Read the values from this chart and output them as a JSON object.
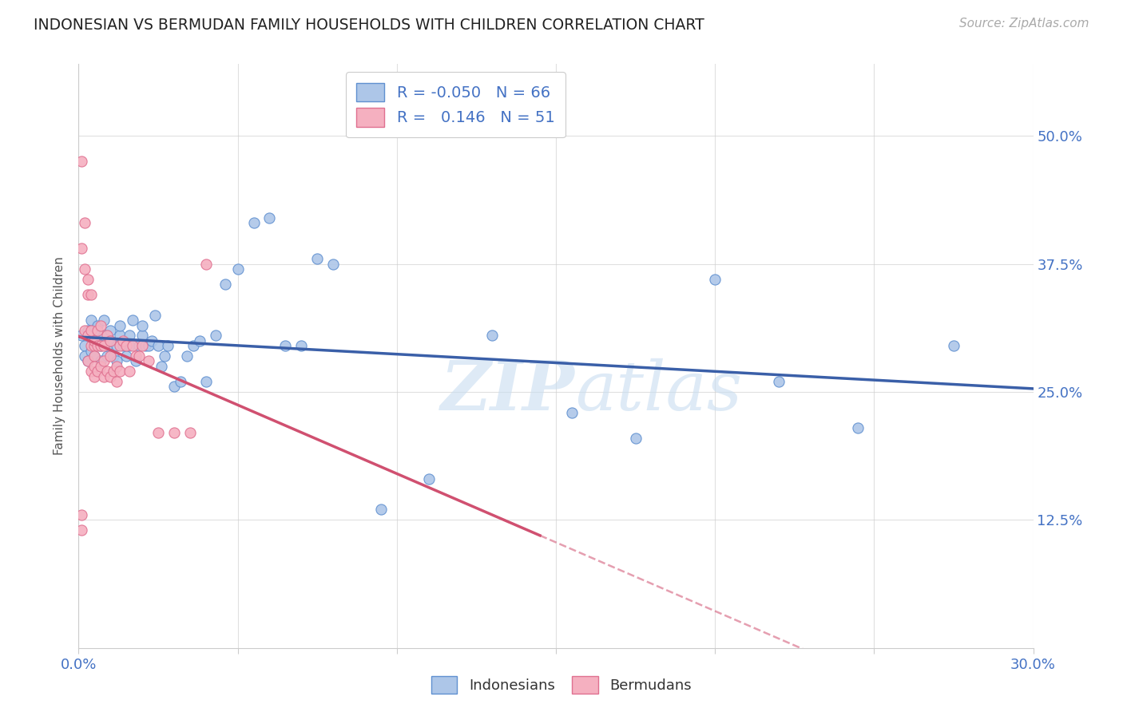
{
  "title": "INDONESIAN VS BERMUDAN FAMILY HOUSEHOLDS WITH CHILDREN CORRELATION CHART",
  "source": "Source: ZipAtlas.com",
  "legend_label_indonesian": "Indonesians",
  "legend_label_bermudan": "Bermudans",
  "ylabel": "Family Households with Children",
  "xmin": 0.0,
  "xmax": 0.3,
  "ymin": 0.0,
  "ymax": 0.57,
  "yticks": [
    0.125,
    0.25,
    0.375,
    0.5
  ],
  "ytick_labels": [
    "12.5%",
    "25.0%",
    "37.5%",
    "50.0%"
  ],
  "xticks": [
    0.0,
    0.05,
    0.1,
    0.15,
    0.2,
    0.25,
    0.3
  ],
  "xtick_labels": [
    "0.0%",
    "",
    "",
    "",
    "",
    "",
    "30.0%"
  ],
  "R_indonesian": -0.05,
  "N_indonesian": 66,
  "R_bermudan": 0.146,
  "N_bermudan": 51,
  "color_indonesian": "#adc6e8",
  "color_bermudan": "#f5b0c0",
  "edge_color_indonesian": "#6090d0",
  "edge_color_bermudan": "#e07090",
  "line_color_indonesian": "#3a5fa8",
  "line_color_bermudan": "#d05070",
  "legend_blue": "#4472c4",
  "watermark_color": "#c8ddf0",
  "indonesian_x": [
    0.001,
    0.002,
    0.002,
    0.003,
    0.003,
    0.004,
    0.004,
    0.005,
    0.005,
    0.005,
    0.006,
    0.006,
    0.007,
    0.007,
    0.008,
    0.008,
    0.009,
    0.009,
    0.01,
    0.01,
    0.011,
    0.012,
    0.012,
    0.013,
    0.013,
    0.014,
    0.015,
    0.016,
    0.016,
    0.017,
    0.018,
    0.019,
    0.02,
    0.02,
    0.021,
    0.022,
    0.023,
    0.024,
    0.025,
    0.026,
    0.027,
    0.028,
    0.03,
    0.032,
    0.034,
    0.036,
    0.038,
    0.04,
    0.043,
    0.046,
    0.05,
    0.055,
    0.06,
    0.065,
    0.07,
    0.075,
    0.08,
    0.095,
    0.11,
    0.13,
    0.155,
    0.175,
    0.2,
    0.22,
    0.245,
    0.275
  ],
  "indonesian_y": [
    0.305,
    0.295,
    0.285,
    0.31,
    0.28,
    0.32,
    0.29,
    0.31,
    0.295,
    0.285,
    0.3,
    0.315,
    0.295,
    0.28,
    0.305,
    0.32,
    0.285,
    0.295,
    0.31,
    0.3,
    0.285,
    0.28,
    0.295,
    0.305,
    0.315,
    0.295,
    0.285,
    0.295,
    0.305,
    0.32,
    0.28,
    0.295,
    0.305,
    0.315,
    0.295,
    0.295,
    0.3,
    0.325,
    0.295,
    0.275,
    0.285,
    0.295,
    0.255,
    0.26,
    0.285,
    0.295,
    0.3,
    0.26,
    0.305,
    0.355,
    0.37,
    0.415,
    0.42,
    0.295,
    0.295,
    0.38,
    0.375,
    0.135,
    0.165,
    0.305,
    0.23,
    0.205,
    0.36,
    0.26,
    0.215,
    0.295
  ],
  "bermudan_x": [
    0.001,
    0.001,
    0.001,
    0.002,
    0.002,
    0.002,
    0.003,
    0.003,
    0.003,
    0.003,
    0.004,
    0.004,
    0.004,
    0.004,
    0.005,
    0.005,
    0.005,
    0.005,
    0.005,
    0.006,
    0.006,
    0.006,
    0.007,
    0.007,
    0.007,
    0.008,
    0.008,
    0.008,
    0.009,
    0.009,
    0.01,
    0.01,
    0.01,
    0.011,
    0.012,
    0.012,
    0.013,
    0.013,
    0.014,
    0.015,
    0.016,
    0.017,
    0.018,
    0.019,
    0.02,
    0.022,
    0.025,
    0.03,
    0.035,
    0.04,
    0.001
  ],
  "bermudan_y": [
    0.475,
    0.39,
    0.115,
    0.415,
    0.37,
    0.31,
    0.36,
    0.345,
    0.305,
    0.28,
    0.345,
    0.31,
    0.295,
    0.27,
    0.295,
    0.3,
    0.285,
    0.275,
    0.265,
    0.31,
    0.295,
    0.27,
    0.315,
    0.295,
    0.275,
    0.295,
    0.28,
    0.265,
    0.305,
    0.27,
    0.3,
    0.285,
    0.265,
    0.27,
    0.275,
    0.26,
    0.295,
    0.27,
    0.3,
    0.295,
    0.27,
    0.295,
    0.285,
    0.285,
    0.295,
    0.28,
    0.21,
    0.21,
    0.21,
    0.375,
    0.13
  ]
}
